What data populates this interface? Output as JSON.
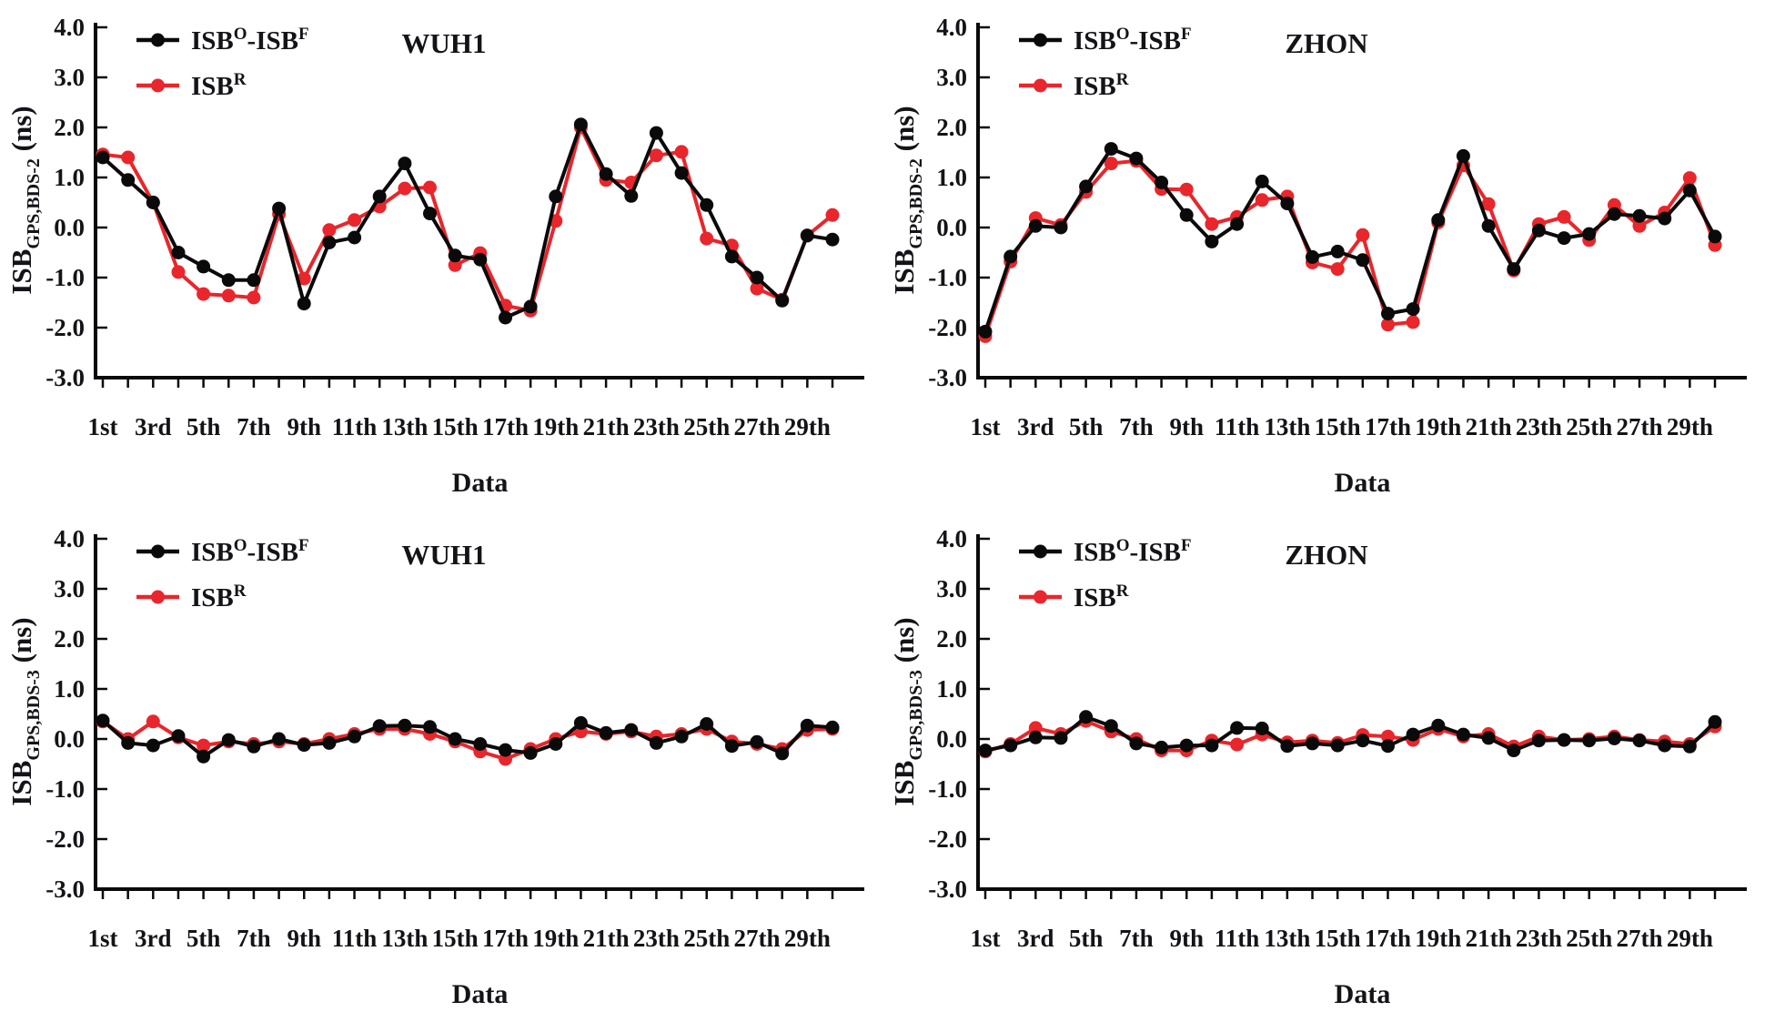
{
  "figure": {
    "background": "#ffffff",
    "text_color": "#131318",
    "accent_red": "#e8262c",
    "series_black": "#0a0a0a"
  },
  "chart_data": {
    "type": "line",
    "grid": "off",
    "legend_position": "top-left-inside",
    "shared": {
      "xlabel": "Data",
      "x_days": 30,
      "xtick_labels": [
        "1st",
        "3rd",
        "5th",
        "7th",
        "9th",
        "11th",
        "13th",
        "15th",
        "17th",
        "19th",
        "21th",
        "23th",
        "25th",
        "27th",
        "29th"
      ],
      "ytick_labels": [
        "4.0",
        "3.0",
        "2.0",
        "1.0",
        "0.0",
        "-1.0",
        "-2.0",
        "-3.0"
      ],
      "ytick_values": [
        4,
        3,
        2,
        1,
        0,
        -1,
        -2,
        -3
      ],
      "ylim": [
        -3.0,
        4.0
      ],
      "legend": [
        {
          "name": "ISB^O-ISB^F",
          "color": "#0a0a0a",
          "parts": [
            {
              "t": "ISB"
            },
            {
              "t": "O",
              "sup": true
            },
            {
              "t": "-ISB"
            },
            {
              "t": "F",
              "sup": true
            }
          ]
        },
        {
          "name": "ISB^R",
          "color": "#e8262c",
          "parts": [
            {
              "t": "ISB"
            },
            {
              "t": "R",
              "sup": true
            }
          ]
        }
      ]
    },
    "charts": [
      {
        "id": "wuh1-bds2",
        "title": "WUH1",
        "ylabel": "ISB_GPS,BDS-2 (ns)",
        "ylabel_parts": [
          {
            "t": "ISB"
          },
          {
            "t": "GPS,BDS-2",
            "sub": true
          },
          {
            "t": " (ns)"
          }
        ],
        "series": [
          {
            "name": "ISB^O-ISB^F",
            "color": "#0a0a0a",
            "values": [
              1.4,
              0.95,
              0.5,
              -0.5,
              -0.78,
              -1.05,
              -1.05,
              0.38,
              -1.52,
              -0.3,
              -0.2,
              0.62,
              1.28,
              0.28,
              -0.56,
              -0.64,
              -1.8,
              -1.58,
              0.62,
              2.06,
              1.07,
              0.63,
              1.89,
              1.09,
              0.45,
              -0.58,
              -1.0,
              -1.46,
              -0.16,
              -0.24
            ]
          },
          {
            "name": "ISB^R",
            "color": "#e8262c",
            "values": [
              1.46,
              1.4,
              0.5,
              -0.89,
              -1.33,
              -1.36,
              -1.4,
              0.27,
              -1.02,
              -0.05,
              0.15,
              0.42,
              0.78,
              0.8,
              -0.75,
              -0.51,
              -1.56,
              -1.66,
              0.13,
              2.0,
              0.95,
              0.9,
              1.44,
              1.51,
              -0.22,
              -0.36,
              -1.22,
              -1.44,
              -0.16,
              0.25
            ]
          }
        ]
      },
      {
        "id": "zhon-bds2",
        "title": "ZHON",
        "ylabel": "ISB_GPS,BDS-2 (ns)",
        "ylabel_parts": [
          {
            "t": "ISB"
          },
          {
            "t": "GPS,BDS-2",
            "sub": true
          },
          {
            "t": " (ns)"
          }
        ],
        "series": [
          {
            "name": "ISB^O-ISB^F",
            "color": "#0a0a0a",
            "values": [
              -2.08,
              -0.58,
              0.03,
              0.0,
              0.82,
              1.57,
              1.38,
              0.9,
              0.25,
              -0.28,
              0.07,
              0.92,
              0.48,
              -0.59,
              -0.48,
              -0.65,
              -1.72,
              -1.63,
              0.15,
              1.43,
              0.03,
              -0.83,
              -0.06,
              -0.21,
              -0.13,
              0.27,
              0.23,
              0.18,
              0.74,
              -0.18
            ]
          },
          {
            "name": "ISB^R",
            "color": "#e8262c",
            "values": [
              -2.17,
              -0.68,
              0.19,
              0.05,
              0.71,
              1.28,
              1.33,
              0.77,
              0.76,
              0.07,
              0.21,
              0.55,
              0.62,
              -0.7,
              -0.83,
              -0.15,
              -1.94,
              -1.89,
              0.1,
              1.24,
              0.47,
              -0.86,
              0.07,
              0.21,
              -0.25,
              0.45,
              0.03,
              0.3,
              0.99,
              -0.35
            ]
          }
        ]
      },
      {
        "id": "wuh1-bds3",
        "title": "WUH1",
        "ylabel": "ISB_GPS,BDS-3 (ns)",
        "ylabel_parts": [
          {
            "t": "ISB"
          },
          {
            "t": "GPS,BDS-3",
            "sub": true
          },
          {
            "t": " (ns)"
          }
        ],
        "series": [
          {
            "name": "ISB^O-ISB^F",
            "color": "#0a0a0a",
            "values": [
              0.37,
              -0.08,
              -0.13,
              0.06,
              -0.35,
              -0.02,
              -0.15,
              0.0,
              -0.12,
              -0.08,
              0.05,
              0.26,
              0.27,
              0.24,
              0.0,
              -0.1,
              -0.22,
              -0.28,
              -0.1,
              0.32,
              0.12,
              0.18,
              -0.08,
              0.05,
              0.3,
              -0.14,
              -0.06,
              -0.29,
              0.27,
              0.23
            ]
          },
          {
            "name": "ISB^R",
            "color": "#e8262c",
            "values": [
              0.35,
              0.0,
              0.35,
              0.03,
              -0.13,
              -0.05,
              -0.1,
              -0.05,
              -0.1,
              0.0,
              0.1,
              0.2,
              0.2,
              0.1,
              -0.05,
              -0.25,
              -0.4,
              -0.2,
              0.0,
              0.15,
              0.1,
              0.15,
              0.05,
              0.1,
              0.2,
              -0.05,
              -0.1,
              -0.2,
              0.18,
              0.2
            ]
          }
        ]
      },
      {
        "id": "zhon-bds3",
        "title": "ZHON",
        "ylabel": "ISB_GPS,BDS-3 (ns)",
        "ylabel_parts": [
          {
            "t": "ISB"
          },
          {
            "t": "GPS,BDS-3",
            "sub": true
          },
          {
            "t": " (ns)"
          }
        ],
        "series": [
          {
            "name": "ISB^O-ISB^F",
            "color": "#0a0a0a",
            "values": [
              -0.23,
              -0.13,
              0.03,
              0.02,
              0.44,
              0.26,
              -0.09,
              -0.17,
              -0.13,
              -0.13,
              0.22,
              0.21,
              -0.14,
              -0.09,
              -0.13,
              -0.03,
              -0.14,
              0.09,
              0.27,
              0.09,
              0.02,
              -0.23,
              -0.03,
              -0.02,
              -0.03,
              0.01,
              -0.03,
              -0.13,
              -0.15,
              0.34
            ]
          },
          {
            "name": "ISB^R",
            "color": "#e8262c",
            "values": [
              -0.25,
              -0.1,
              0.22,
              0.1,
              0.36,
              0.15,
              0.0,
              -0.23,
              -0.23,
              -0.03,
              -0.11,
              0.09,
              -0.07,
              -0.03,
              -0.08,
              0.08,
              0.05,
              -0.02,
              0.2,
              0.05,
              0.1,
              -0.15,
              0.05,
              -0.02,
              0.0,
              0.05,
              -0.02,
              -0.05,
              -0.1,
              0.25
            ]
          }
        ]
      }
    ]
  }
}
